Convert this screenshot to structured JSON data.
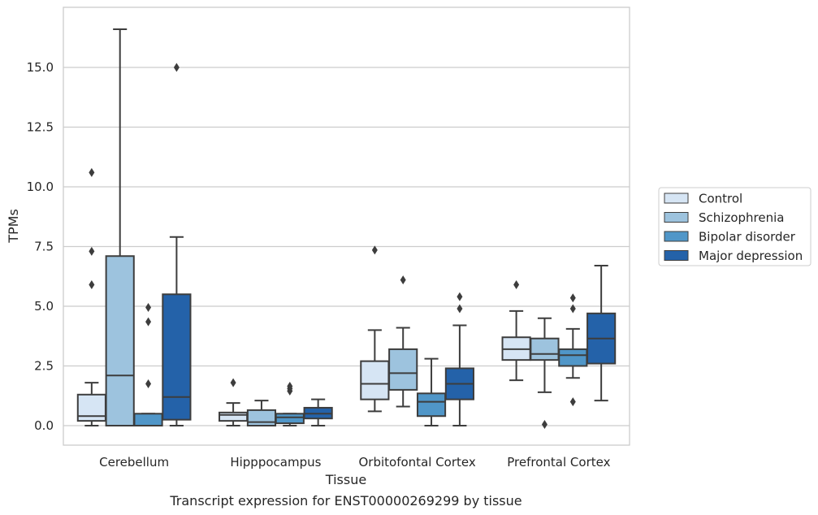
{
  "caption": "Transcript expression for ENST00000269299 by tissue",
  "chart_data": {
    "type": "box",
    "xlabel": "Tissue",
    "ylabel": "TPMs",
    "ylim": [
      -0.8,
      17.5
    ],
    "yticks": [
      "0.0",
      "2.5",
      "5.0",
      "7.5",
      "10.0",
      "12.5",
      "15.0"
    ],
    "grid": "horizontal",
    "legend_position": "right",
    "categories": [
      "Cerebellum",
      "Hipppocampus",
      "Orbitofontal Cortex",
      "Prefrontal Cortex"
    ],
    "series": [
      {
        "name": "Control",
        "color": "#d6e5f4",
        "boxes": [
          {
            "whisker_low": 0.0,
            "q1": 0.2,
            "median": 0.4,
            "q3": 1.3,
            "whisker_high": 1.8,
            "outliers": [
              5.9,
              7.3,
              10.6
            ]
          },
          {
            "whisker_low": 0.0,
            "q1": 0.2,
            "median": 0.45,
            "q3": 0.55,
            "whisker_high": 0.95,
            "outliers": [
              1.8
            ]
          },
          {
            "whisker_low": 0.6,
            "q1": 1.1,
            "median": 1.75,
            "q3": 2.7,
            "whisker_high": 4.0,
            "outliers": [
              7.35
            ]
          },
          {
            "whisker_low": 1.9,
            "q1": 2.75,
            "median": 3.2,
            "q3": 3.7,
            "whisker_high": 4.8,
            "outliers": [
              5.9
            ]
          }
        ]
      },
      {
        "name": "Schizophrenia",
        "color": "#9dc3de",
        "boxes": [
          {
            "whisker_low": 0.0,
            "q1": 0.0,
            "median": 2.1,
            "q3": 7.1,
            "whisker_high": 16.6,
            "outliers": []
          },
          {
            "whisker_low": 0.0,
            "q1": 0.0,
            "median": 0.15,
            "q3": 0.65,
            "whisker_high": 1.05,
            "outliers": []
          },
          {
            "whisker_low": 0.8,
            "q1": 1.5,
            "median": 2.2,
            "q3": 3.2,
            "whisker_high": 4.1,
            "outliers": [
              6.1
            ]
          },
          {
            "whisker_low": 1.4,
            "q1": 2.75,
            "median": 3.0,
            "q3": 3.65,
            "whisker_high": 4.5,
            "outliers": [
              0.05
            ]
          }
        ]
      },
      {
        "name": "Bipolar disorder",
        "color": "#5096c8",
        "boxes": [
          {
            "whisker_low": 0.0,
            "q1": 0.0,
            "median": 0.0,
            "q3": 0.5,
            "whisker_high": 0.5,
            "outliers": [
              1.75,
              4.35,
              4.95
            ]
          },
          {
            "whisker_low": 0.0,
            "q1": 0.1,
            "median": 0.35,
            "q3": 0.5,
            "whisker_high": 0.5,
            "outliers": [
              1.45,
              1.55,
              1.65
            ]
          },
          {
            "whisker_low": 0.0,
            "q1": 0.4,
            "median": 1.0,
            "q3": 1.35,
            "whisker_high": 2.8,
            "outliers": []
          },
          {
            "whisker_low": 2.0,
            "q1": 2.5,
            "median": 2.95,
            "q3": 3.2,
            "whisker_high": 4.05,
            "outliers": [
              1.0,
              4.9,
              5.35
            ]
          }
        ]
      },
      {
        "name": "Major depression",
        "color": "#2462a9",
        "boxes": [
          {
            "whisker_low": 0.0,
            "q1": 0.25,
            "median": 1.2,
            "q3": 5.5,
            "whisker_high": 7.9,
            "outliers": [
              15.0
            ]
          },
          {
            "whisker_low": 0.0,
            "q1": 0.3,
            "median": 0.5,
            "q3": 0.75,
            "whisker_high": 1.1,
            "outliers": []
          },
          {
            "whisker_low": 0.0,
            "q1": 1.1,
            "median": 1.75,
            "q3": 2.4,
            "whisker_high": 4.2,
            "outliers": [
              4.9,
              5.4
            ]
          },
          {
            "whisker_low": 1.05,
            "q1": 2.6,
            "median": 3.65,
            "q3": 4.7,
            "whisker_high": 6.7,
            "outliers": []
          }
        ]
      }
    ]
  }
}
